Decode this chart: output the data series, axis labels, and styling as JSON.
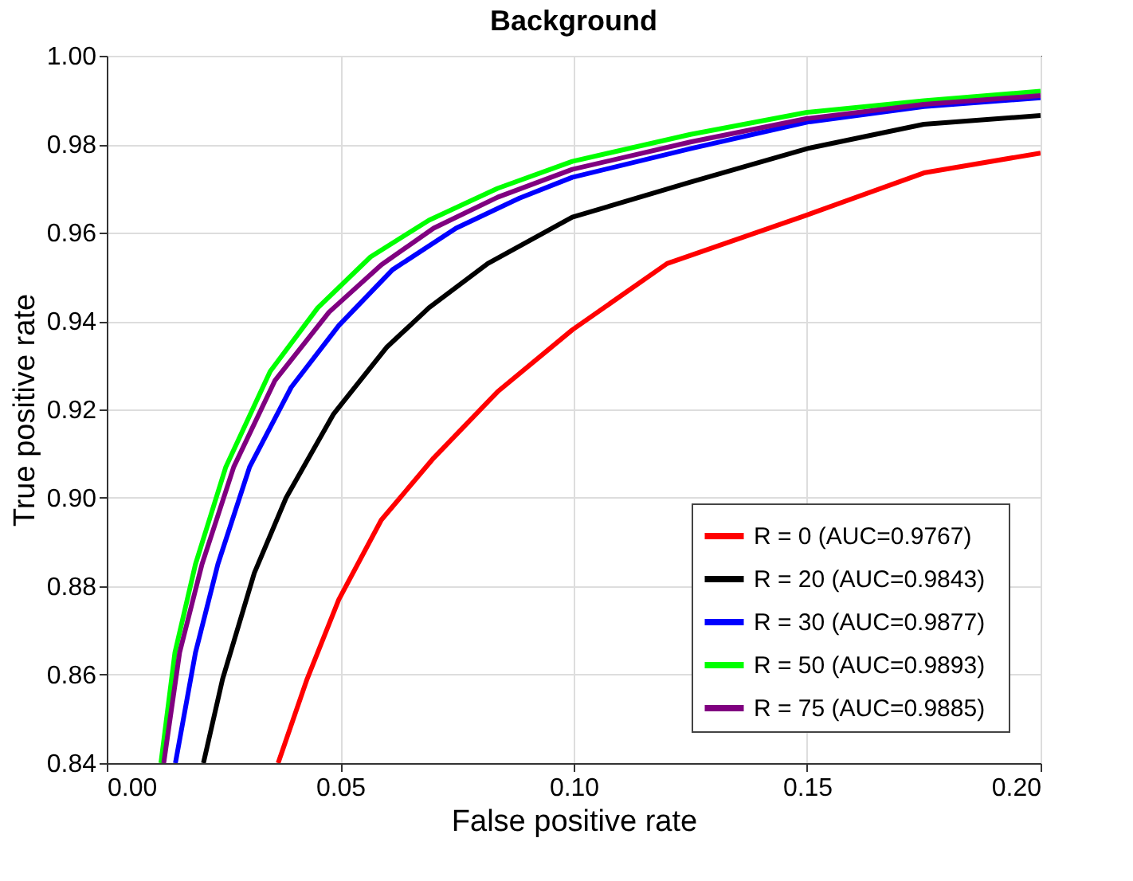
{
  "chart_data": {
    "type": "line",
    "title": "Background",
    "xlabel": "False positive rate",
    "ylabel": "True positive rate",
    "xlim": [
      0,
      0.2
    ],
    "xticks": [
      {
        "value": 0,
        "label": "0.00"
      },
      0.05,
      {
        "value": 0.1,
        "label": "0.10"
      },
      0.15,
      {
        "value": 0.2,
        "label": "0.20"
      }
    ],
    "ylim": [
      0.84,
      1.0
    ],
    "yticks": [
      {
        "value": 0.84,
        "label": "0.84"
      },
      {
        "value": 0.86,
        "label": "0.86"
      },
      {
        "value": 0.88,
        "label": "0.88"
      },
      {
        "value": 0.9,
        "label": "0.90"
      },
      {
        "value": 0.92,
        "label": "0.92"
      },
      {
        "value": 0.94,
        "label": "0.94"
      },
      {
        "value": 0.96,
        "label": "0.96"
      },
      {
        "value": 0.98,
        "label": "0.98"
      },
      {
        "value": 1.0,
        "label": "1.00"
      }
    ],
    "grid": true,
    "legend": "bottom right",
    "marker": "none",
    "line_style": "solid",
    "series": [
      {
        "name": "R = 0   (AUC=0.9767)",
        "color": "#ff0000",
        "x": [
          0.0367,
          0.0429,
          0.0497,
          0.0588,
          0.07,
          0.0837,
          0.0997,
          0.12,
          0.15,
          0.175,
          0.2
        ],
        "values": [
          0.84,
          0.859,
          0.877,
          0.895,
          0.909,
          0.924,
          0.938,
          0.953,
          0.964,
          0.9735,
          0.978
        ]
      },
      {
        "name": "R = 20 (AUC=0.9843)",
        "color": "#000000",
        "x": [
          0.0207,
          0.0248,
          0.0316,
          0.0384,
          0.0486,
          0.0599,
          0.069,
          0.0816,
          0.0997,
          0.125,
          0.15,
          0.175,
          0.2
        ],
        "values": [
          0.84,
          0.859,
          0.883,
          0.9,
          0.919,
          0.934,
          0.943,
          0.953,
          0.9635,
          0.9714,
          0.979,
          0.9845,
          0.9865
        ]
      },
      {
        "name": "R = 30 (AUC=0.9877)",
        "color": "#0000ff",
        "x": [
          0.0147,
          0.019,
          0.0238,
          0.0306,
          0.0395,
          0.0497,
          0.0612,
          0.0748,
          0.0884,
          0.0997,
          0.125,
          0.15,
          0.175,
          0.2
        ],
        "values": [
          0.84,
          0.865,
          0.885,
          0.907,
          0.925,
          0.939,
          0.9516,
          0.961,
          0.9678,
          0.9725,
          0.979,
          0.985,
          0.9885,
          0.9905
        ]
      },
      {
        "name": "R = 50   (AUC=0.9893)",
        "color": "#00ff00",
        "x": [
          0.0116,
          0.0146,
          0.019,
          0.0255,
          0.035,
          0.0452,
          0.0565,
          0.069,
          0.0837,
          0.0997,
          0.125,
          0.15,
          0.175,
          0.2
        ],
        "values": [
          0.84,
          0.865,
          0.885,
          0.907,
          0.9286,
          0.943,
          0.9545,
          0.9628,
          0.97,
          0.9761,
          0.9822,
          0.9872,
          0.9898,
          0.992
        ]
      },
      {
        "name": "R = 75 (AUC=0.9885)",
        "color": "#800080",
        "x": [
          0.0122,
          0.0156,
          0.0204,
          0.0272,
          0.036,
          0.0476,
          0.0588,
          0.07,
          0.0837,
          0.0997,
          0.125,
          0.15,
          0.175,
          0.2
        ],
        "values": [
          0.84,
          0.865,
          0.885,
          0.907,
          0.9265,
          0.942,
          0.9527,
          0.961,
          0.968,
          0.9743,
          0.9805,
          0.9858,
          0.989,
          0.991
        ]
      }
    ]
  }
}
